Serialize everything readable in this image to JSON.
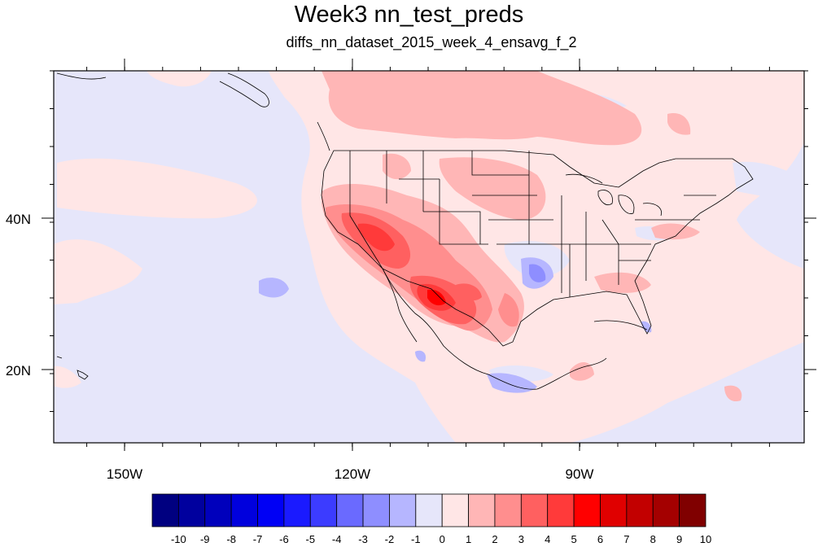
{
  "figure": {
    "title": "Week3 nn_test_preds",
    "subtitle": "diffs_nn_dataset_2015_week_4_ensavg_f_2",
    "lon_labels": [
      "150W",
      "120W",
      "90W"
    ],
    "lat_labels": [
      "40N",
      "20N"
    ]
  },
  "colorbar": {
    "labels": [
      "-10",
      "-9",
      "-8",
      "-7",
      "-6",
      "-5",
      "-4",
      "-3",
      "-2",
      "-1",
      "0",
      "1",
      "2",
      "3",
      "4",
      "5",
      "6",
      "7",
      "8",
      "9",
      "10"
    ],
    "colors": [
      "#000080",
      "#00009e",
      "#0000bc",
      "#0000dd",
      "#0000f5",
      "#1a1aff",
      "#3c3cff",
      "#6a6aff",
      "#8e8eff",
      "#b6b6ff",
      "#e6e6fa",
      "#ffe6e6",
      "#ffb6b6",
      "#ff8e8e",
      "#ff6060",
      "#ff3a3a",
      "#ff0000",
      "#e00000",
      "#c20000",
      "#a40000",
      "#800000"
    ]
  },
  "map": {
    "background_color": "#e6e6fa",
    "lon_range": [
      -160,
      -60
    ],
    "lat_range": [
      10,
      60
    ]
  }
}
